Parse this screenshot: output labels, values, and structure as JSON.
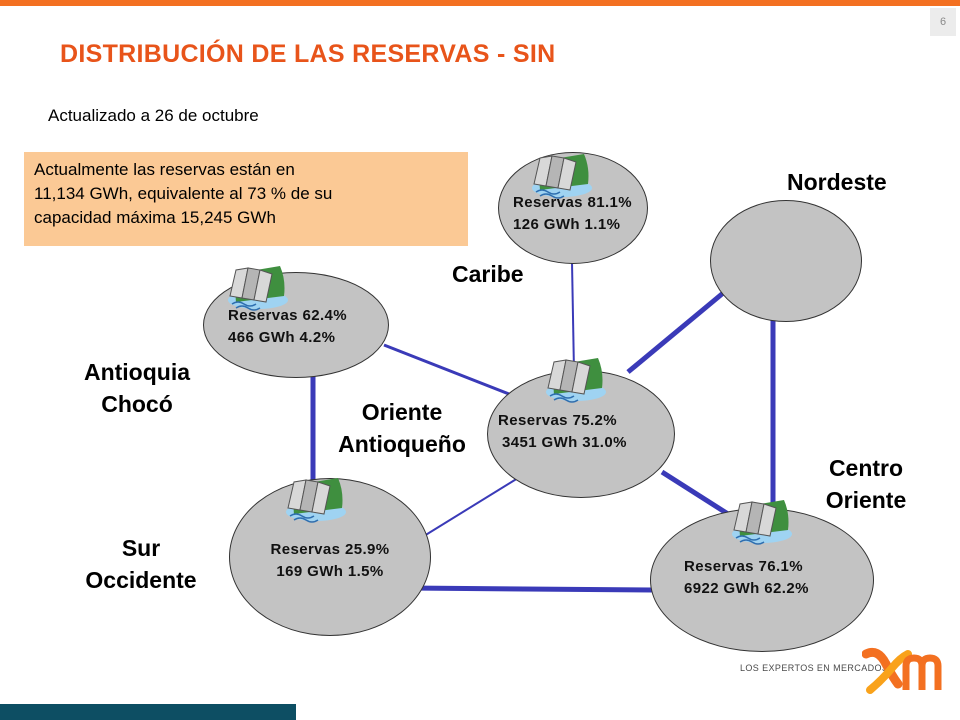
{
  "page_number": "6",
  "title": "DISTRIBUCIÓN DE LAS RESERVAS - SIN",
  "subtitle": "Actualizado a 26 de octubre",
  "info_box": {
    "line1": "Actualmente las reservas están en",
    "line2": "11,134 GWh, equivalente al 73 % de su",
    "line3": "capacidad  máxima 15,245 GWh"
  },
  "colors": {
    "accent": "#f37021",
    "title": "#e8541a",
    "info_box_bg": "#fbc995",
    "node_fill": "#c3c3c3",
    "link": "#3a3ab8",
    "footer_bar": "#0d4e63"
  },
  "regions": {
    "caribe": "Caribe",
    "nordeste": "Nordeste",
    "antioquia_line1": "Antioquia",
    "antioquia_line2": "Chocó",
    "oriente_line1": "Oriente",
    "oriente_line2": "Antioqueño",
    "centro_line1": "Centro",
    "centro_line2": "Oriente",
    "sur_line1": "Sur",
    "sur_line2": "Occidente"
  },
  "nodes": {
    "caribe": {
      "reserve": "Reservas 81.1%",
      "energy": "126 GWh 1.1%",
      "icon": "dam-icon"
    },
    "antioquia": {
      "reserve": "Reservas 62.4%",
      "energy": "466 GWh 4.2%",
      "icon": "dam-icon"
    },
    "oriente": {
      "reserve": "Reservas 75.2%",
      "energy": "3451 GWh 31.0%",
      "icon": "dam-icon"
    },
    "sur": {
      "reserve": "Reservas 25.9%",
      "energy": "169 GWh 1.5%",
      "icon": "dam-icon"
    },
    "centro": {
      "reserve": "Reservas 76.1%",
      "energy": "6922 GWh  62.2%",
      "icon": "dam-icon"
    }
  },
  "logo": {
    "tagline": "LOS EXPERTOS EN MERCADOS",
    "mark": "xm"
  }
}
